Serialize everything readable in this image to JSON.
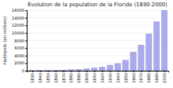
{
  "chart_data": {
    "type": "bar",
    "title": "Évolution de la population de la Floride (1830-2000)",
    "ylabel": "Habitants (en milliers)",
    "x": [
      1830,
      1840,
      1850,
      1860,
      1870,
      1880,
      1890,
      1900,
      1910,
      1920,
      1930,
      1940,
      1950,
      1960,
      1970,
      1980,
      1990,
      2000
    ],
    "values": [
      35,
      55,
      87,
      141,
      188,
      270,
      391,
      529,
      753,
      968,
      1469,
      1897,
      2772,
      4952,
      6791,
      9747,
      12938,
      15982
    ],
    "color": "#aaaaee",
    "xlim": [
      1823,
      2005
    ],
    "xticks": [
      1830,
      1840,
      1850,
      1860,
      1870,
      1880,
      1890,
      1900,
      1910,
      1920,
      1930,
      1940,
      1950,
      1960,
      1970,
      1980,
      1990,
      2000
    ],
    "ylim": [
      0,
      16000
    ],
    "yticks": [
      0,
      2000,
      4000,
      6000,
      8000,
      10000,
      12000,
      14000,
      16000
    ],
    "grid": true
  }
}
